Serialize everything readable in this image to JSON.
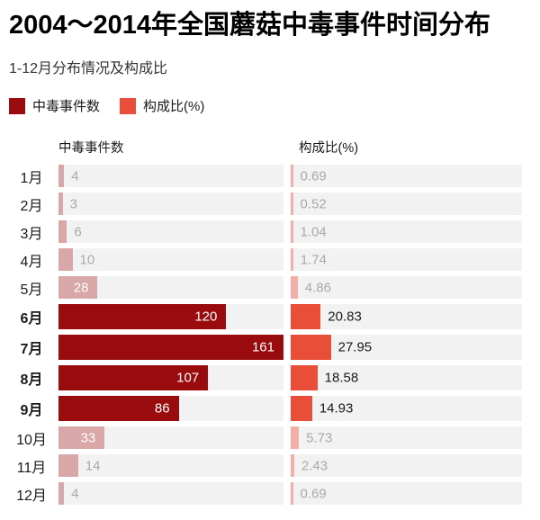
{
  "page": {
    "title": "2004～2014年全国蘑菇中毒事件时间分布",
    "subtitle": "1-12月分布情况及构成比"
  },
  "legend": [
    {
      "label": "中毒事件数",
      "color": "#9a0b0e"
    },
    {
      "label": "构成比(%)",
      "color": "#e94f38"
    }
  ],
  "columns": {
    "events_header": "中毒事件数",
    "ratio_header": "构成比(%)"
  },
  "colors": {
    "events_bar": "#9a0b0e",
    "events_bar_muted": "#d9a7a7",
    "ratio_bar": "#e94f38",
    "ratio_bar_muted": "#f2aea7",
    "track": "#f2f2f2",
    "value_inside_text": "#ffffff",
    "value_text": "#1a1a1a",
    "value_muted_text": "#a9a9a9"
  },
  "chart_data": {
    "type": "bar",
    "orientation": "horizontal",
    "title": "2004～2014年全国蘑菇中毒事件时间分布",
    "subtitle": "1-12月分布情况及构成比",
    "categories": [
      "1月",
      "2月",
      "3月",
      "4月",
      "5月",
      "6月",
      "7月",
      "8月",
      "9月",
      "10月",
      "11月",
      "12月"
    ],
    "series": [
      {
        "name": "中毒事件数",
        "values": [
          4,
          3,
          6,
          10,
          28,
          120,
          161,
          107,
          86,
          33,
          14,
          4
        ]
      },
      {
        "name": "构成比(%)",
        "values": [
          0.69,
          0.52,
          1.04,
          1.74,
          4.86,
          20.83,
          27.95,
          18.58,
          14.93,
          5.73,
          2.43,
          0.69
        ]
      }
    ],
    "highlighted": [
      false,
      false,
      false,
      false,
      false,
      true,
      true,
      true,
      true,
      false,
      false,
      false
    ],
    "axis_max": 161,
    "grid": false,
    "legend_position": "top"
  }
}
